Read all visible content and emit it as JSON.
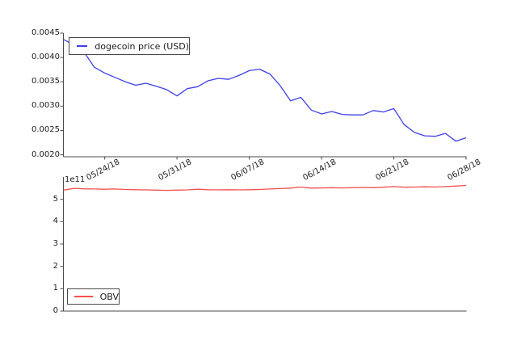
{
  "figure": {
    "background": "#ffffff",
    "axis_color": "#4a4a4a",
    "text_color": "#1c1c1c"
  },
  "chart_data": [
    {
      "type": "line",
      "panel": "top",
      "title": "",
      "xlabel": "",
      "ylabel": "",
      "grid": false,
      "legend": {
        "label": "dogecoin price (USD)",
        "position": "upper left"
      },
      "line_color": "#4040e8",
      "ylim": [
        0.00196,
        0.0045
      ],
      "y_tick_labels": [
        "0.0020",
        "0.0025",
        "0.0030",
        "0.0035",
        "0.0040",
        "0.0045"
      ],
      "x_tick_labels": [
        "05/24/18",
        "05/31/18",
        "06/07/18",
        "06/14/18",
        "06/21/18",
        "06/28/18"
      ],
      "x": [
        "05/20/18",
        "05/21/18",
        "05/22/18",
        "05/23/18",
        "05/24/18",
        "05/25/18",
        "05/26/18",
        "05/27/18",
        "05/28/18",
        "05/29/18",
        "05/30/18",
        "05/31/18",
        "06/01/18",
        "06/02/18",
        "06/03/18",
        "06/04/18",
        "06/05/18",
        "06/06/18",
        "06/07/18",
        "06/08/18",
        "06/09/18",
        "06/10/18",
        "06/11/18",
        "06/12/18",
        "06/13/18",
        "06/14/18",
        "06/15/18",
        "06/16/18",
        "06/17/18",
        "06/18/18",
        "06/19/18",
        "06/20/18",
        "06/21/18",
        "06/22/18",
        "06/23/18",
        "06/24/18",
        "06/25/18",
        "06/26/18",
        "06/27/18",
        "06/28/18"
      ],
      "values": [
        0.00437,
        0.00426,
        0.00411,
        0.0038,
        0.00368,
        0.00359,
        0.0035,
        0.00343,
        0.00347,
        0.00341,
        0.00334,
        0.00321,
        0.00336,
        0.0034,
        0.00352,
        0.00357,
        0.00355,
        0.00363,
        0.00373,
        0.00376,
        0.00366,
        0.00342,
        0.00311,
        0.00318,
        0.00292,
        0.00284,
        0.00289,
        0.00283,
        0.00282,
        0.00282,
        0.00291,
        0.00288,
        0.00295,
        0.00262,
        0.00246,
        0.00239,
        0.00238,
        0.00244,
        0.00228,
        0.00235
      ]
    },
    {
      "type": "line",
      "panel": "bottom",
      "title": "",
      "xlabel": "",
      "ylabel": "",
      "grid": false,
      "legend": {
        "label": "OBV",
        "position": "lower left"
      },
      "line_color": "#f44f4f",
      "offset_label": "1e11",
      "unit_multiplier": "1e11",
      "ylim": [
        0,
        6
      ],
      "y_tick_labels": [
        "0",
        "1",
        "2",
        "3",
        "4",
        "5"
      ],
      "x": [
        "05/20/18",
        "05/21/18",
        "05/22/18",
        "05/23/18",
        "05/24/18",
        "05/25/18",
        "05/26/18",
        "05/27/18",
        "05/28/18",
        "05/29/18",
        "05/30/18",
        "05/31/18",
        "06/01/18",
        "06/02/18",
        "06/03/18",
        "06/04/18",
        "06/05/18",
        "06/06/18",
        "06/07/18",
        "06/08/18",
        "06/09/18",
        "06/10/18",
        "06/11/18",
        "06/12/18",
        "06/13/18",
        "06/14/18",
        "06/15/18",
        "06/16/18",
        "06/17/18",
        "06/18/18",
        "06/19/18",
        "06/20/18",
        "06/21/18",
        "06/22/18",
        "06/23/18",
        "06/24/18",
        "06/25/18",
        "06/26/18",
        "06/27/18",
        "06/28/18"
      ],
      "values": [
        5.41,
        5.49,
        5.47,
        5.46,
        5.45,
        5.46,
        5.44,
        5.43,
        5.42,
        5.41,
        5.4,
        5.41,
        5.42,
        5.45,
        5.43,
        5.42,
        5.43,
        5.42,
        5.43,
        5.44,
        5.46,
        5.48,
        5.5,
        5.55,
        5.5,
        5.51,
        5.52,
        5.51,
        5.52,
        5.53,
        5.52,
        5.54,
        5.57,
        5.54,
        5.55,
        5.56,
        5.55,
        5.57,
        5.59,
        5.62
      ]
    }
  ]
}
